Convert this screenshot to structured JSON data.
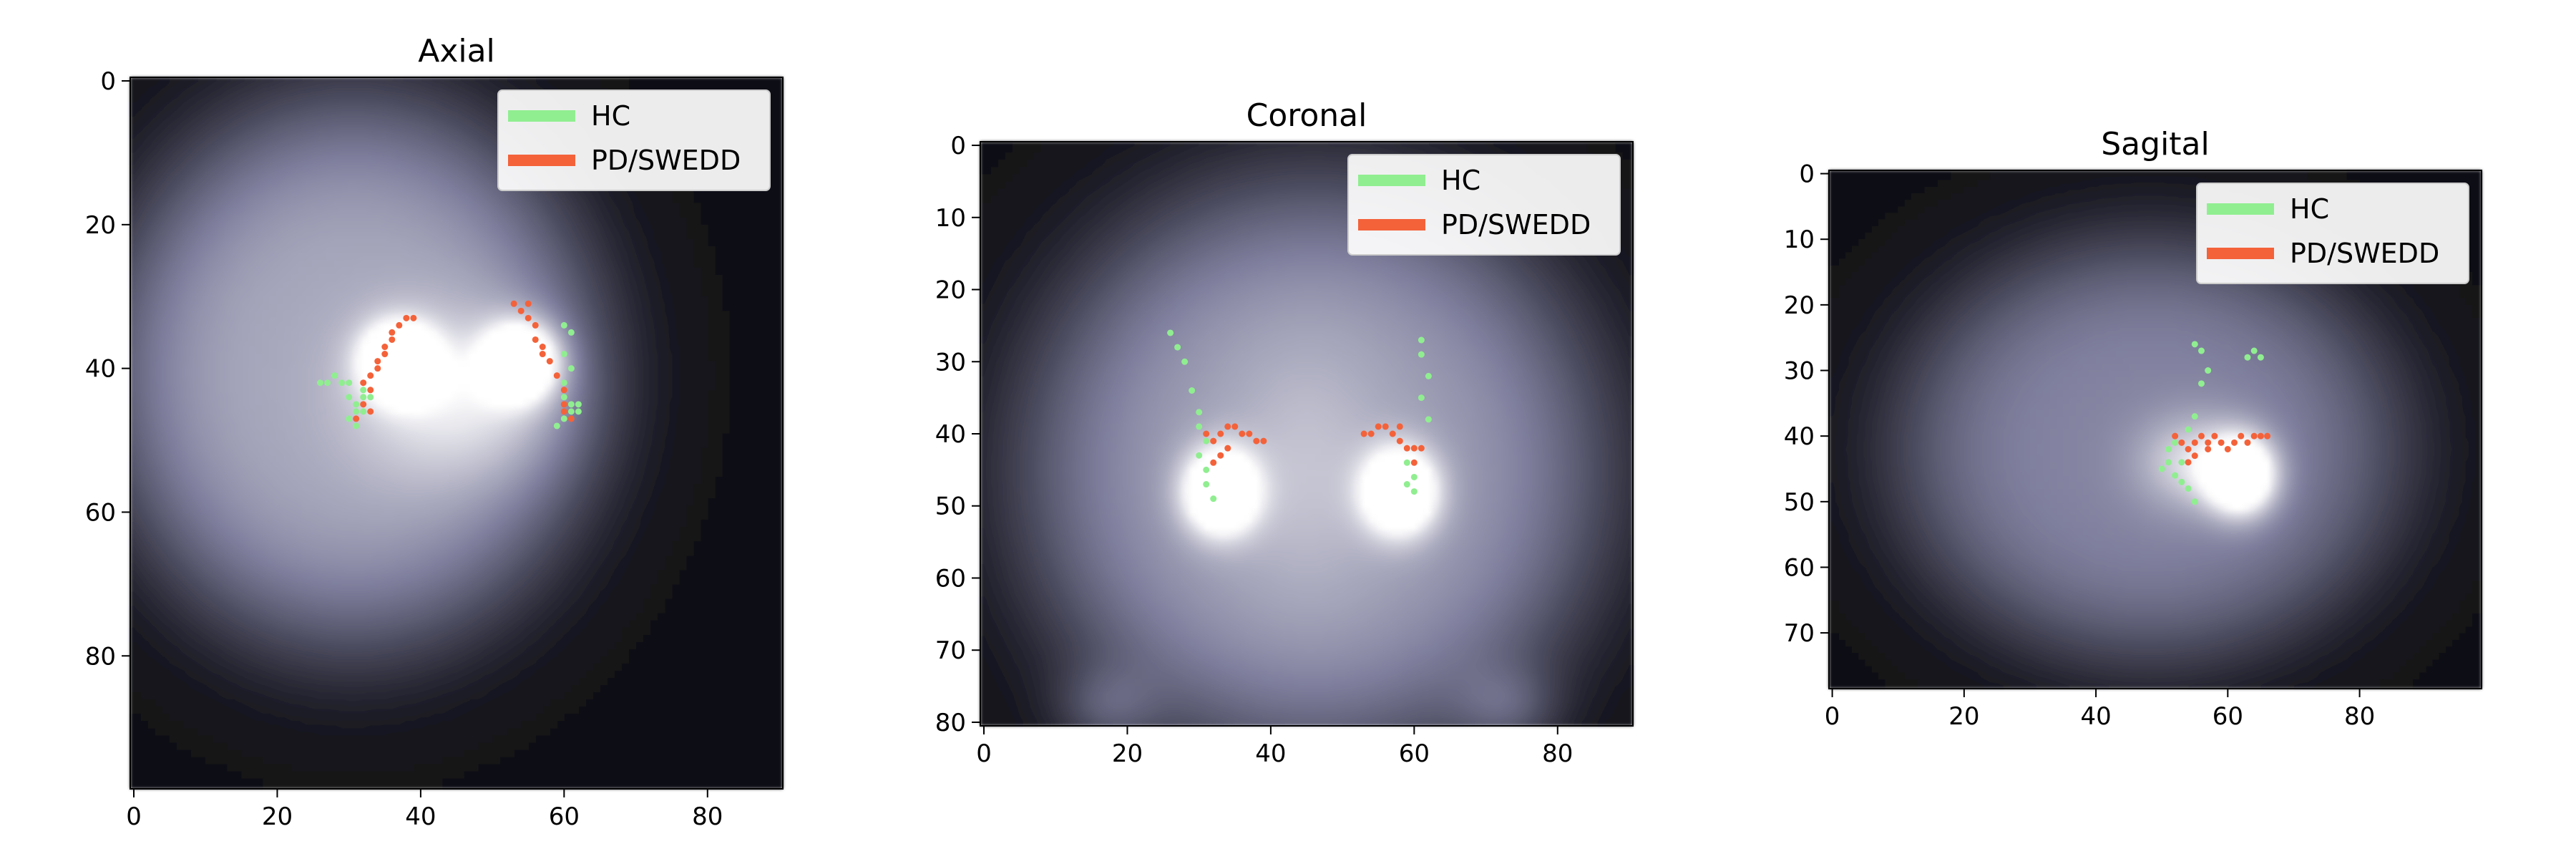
{
  "figure": {
    "type": "image-with-scatter-overlay",
    "colormap": "bone",
    "background": "#ffffff",
    "legend_position": "upper-right"
  },
  "chart_data": [
    {
      "type": "scatter",
      "title": "Axial",
      "xlim": [
        -0.5,
        90.5
      ],
      "ylim": [
        98.5,
        -0.5
      ],
      "x_ticks": [
        0,
        20,
        40,
        60,
        80
      ],
      "y_ticks": [
        0,
        20,
        40,
        60,
        80
      ],
      "image": {
        "width": 91,
        "height": 99,
        "blobs": [
          {
            "x": 30.5,
            "y": 40.5,
            "sx": 34,
            "sy": 38,
            "v": 0.62
          },
          {
            "x": 37,
            "y": 39,
            "sx": 3.5,
            "sy": 3.5,
            "v": 0.95
          },
          {
            "x": 54,
            "y": 39,
            "sx": 3.5,
            "sy": 3.5,
            "v": 0.95
          },
          {
            "x": 40,
            "y": 44,
            "sx": 8,
            "sy": 8,
            "v": 0.2
          },
          {
            "x": 52,
            "y": 44,
            "sx": 8,
            "sy": 8,
            "v": 0.2
          }
        ]
      },
      "series": [
        {
          "name": "HC",
          "color": "#90ee90",
          "points": [
            [
              26,
              42
            ],
            [
              27,
              42
            ],
            [
              28,
              41
            ],
            [
              29,
              42
            ],
            [
              30,
              44
            ],
            [
              31,
              45
            ],
            [
              32,
              44
            ],
            [
              31,
              46
            ],
            [
              30,
              47
            ],
            [
              32,
              46
            ],
            [
              31,
              48
            ],
            [
              33,
              44
            ],
            [
              30,
              42
            ],
            [
              32,
              43
            ],
            [
              60,
              34
            ],
            [
              61,
              35
            ],
            [
              60,
              38
            ],
            [
              61,
              40
            ],
            [
              60,
              44
            ],
            [
              61,
              46
            ],
            [
              62,
              45
            ],
            [
              60,
              47
            ],
            [
              59,
              48
            ],
            [
              61,
              45
            ],
            [
              62,
              46
            ],
            [
              60,
              42
            ]
          ]
        },
        {
          "name": "PD/SWEDD",
          "color": "#f4623a",
          "points": [
            [
              31,
              47
            ],
            [
              32,
              45
            ],
            [
              33,
              43
            ],
            [
              33,
              41
            ],
            [
              34,
              39
            ],
            [
              35,
              38
            ],
            [
              36,
              36
            ],
            [
              36,
              35
            ],
            [
              37,
              34
            ],
            [
              38,
              33
            ],
            [
              39,
              33
            ],
            [
              35,
              37
            ],
            [
              34,
              40
            ],
            [
              32,
              42
            ],
            [
              33,
              46
            ],
            [
              53,
              31
            ],
            [
              54,
              32
            ],
            [
              55,
              33
            ],
            [
              56,
              34
            ],
            [
              56,
              36
            ],
            [
              57,
              37
            ],
            [
              58,
              39
            ],
            [
              59,
              41
            ],
            [
              60,
              43
            ],
            [
              60,
              45
            ],
            [
              61,
              47
            ],
            [
              60,
              46
            ],
            [
              55,
              31
            ],
            [
              57,
              38
            ]
          ]
        }
      ]
    },
    {
      "type": "scatter",
      "title": "Coronal",
      "xlim": [
        -0.5,
        90.5
      ],
      "ylim": [
        80.5,
        -0.5
      ],
      "x_ticks": [
        0,
        20,
        40,
        60,
        80
      ],
      "y_ticks": [
        0,
        10,
        20,
        30,
        40,
        50,
        60,
        70,
        80
      ],
      "image": {
        "width": 91,
        "height": 81,
        "blobs": [
          {
            "x": 46,
            "y": 45,
            "sx": 40,
            "sy": 40,
            "v": 0.58
          },
          {
            "x": 33,
            "y": 48,
            "sx": 3.5,
            "sy": 4,
            "v": 0.95
          },
          {
            "x": 58,
            "y": 48,
            "sx": 3.5,
            "sy": 4,
            "v": 0.95
          },
          {
            "x": 45,
            "y": 45,
            "sx": 8,
            "sy": 12,
            "v": 0.15
          },
          {
            "x": 17,
            "y": 78,
            "sx": 5,
            "sy": 4,
            "v": 0.2
          },
          {
            "x": 73,
            "y": 78,
            "sx": 5,
            "sy": 4,
            "v": 0.2
          }
        ]
      },
      "series": [
        {
          "name": "HC",
          "color": "#90ee90",
          "points": [
            [
              26,
              26
            ],
            [
              27,
              28
            ],
            [
              28,
              30
            ],
            [
              29,
              34
            ],
            [
              30,
              37
            ],
            [
              30,
              39
            ],
            [
              31,
              41
            ],
            [
              30,
              43
            ],
            [
              31,
              45
            ],
            [
              31,
              47
            ],
            [
              32,
              49
            ],
            [
              61,
              27
            ],
            [
              61,
              29
            ],
            [
              62,
              32
            ],
            [
              61,
              35
            ],
            [
              62,
              38
            ],
            [
              60,
              42
            ],
            [
              59,
              44
            ],
            [
              60,
              46
            ],
            [
              59,
              47
            ],
            [
              60,
              48
            ]
          ]
        },
        {
          "name": "PD/SWEDD",
          "color": "#f4623a",
          "points": [
            [
              31,
              40
            ],
            [
              32,
              41
            ],
            [
              33,
              40
            ],
            [
              34,
              39
            ],
            [
              35,
              39
            ],
            [
              36,
              40
            ],
            [
              37,
              40
            ],
            [
              38,
              41
            ],
            [
              39,
              41
            ],
            [
              33,
              43
            ],
            [
              32,
              44
            ],
            [
              34,
              42
            ],
            [
              53,
              40
            ],
            [
              54,
              40
            ],
            [
              55,
              39
            ],
            [
              56,
              39
            ],
            [
              57,
              40
            ],
            [
              58,
              41
            ],
            [
              59,
              42
            ],
            [
              60,
              42
            ],
            [
              61,
              42
            ],
            [
              58,
              39
            ],
            [
              60,
              44
            ]
          ]
        }
      ]
    },
    {
      "type": "scatter",
      "title": "Sagital",
      "xlim": [
        -0.5,
        98.5
      ],
      "ylim": [
        78.5,
        -0.5
      ],
      "x_ticks": [
        0,
        20,
        40,
        60,
        80
      ],
      "y_ticks": [
        0,
        10,
        20,
        30,
        40,
        50,
        60,
        70
      ],
      "image": {
        "width": 99,
        "height": 79,
        "blobs": [
          {
            "x": 48,
            "y": 42,
            "sx": 38,
            "sy": 32,
            "v": 0.48
          },
          {
            "x": 62,
            "y": 46,
            "sx": 3.5,
            "sy": 4,
            "v": 0.95
          },
          {
            "x": 55,
            "y": 44,
            "sx": 6,
            "sy": 5,
            "v": 0.35
          }
        ]
      },
      "series": [
        {
          "name": "HC",
          "color": "#90ee90",
          "points": [
            [
              55,
              26
            ],
            [
              56,
              27
            ],
            [
              57,
              30
            ],
            [
              56,
              32
            ],
            [
              64,
              27
            ],
            [
              65,
              28
            ],
            [
              63,
              28
            ],
            [
              55,
              37
            ],
            [
              54,
              39
            ],
            [
              52,
              41
            ],
            [
              51,
              44
            ],
            [
              50,
              45
            ],
            [
              52,
              46
            ],
            [
              53,
              47
            ],
            [
              54,
              48
            ],
            [
              55,
              50
            ],
            [
              53,
              44
            ],
            [
              51,
              42
            ]
          ]
        },
        {
          "name": "PD/SWEDD",
          "color": "#f4623a",
          "points": [
            [
              52,
              40
            ],
            [
              53,
              41
            ],
            [
              54,
              42
            ],
            [
              55,
              41
            ],
            [
              56,
              40
            ],
            [
              57,
              41
            ],
            [
              58,
              40
            ],
            [
              59,
              41
            ],
            [
              60,
              42
            ],
            [
              61,
              41
            ],
            [
              62,
              40
            ],
            [
              63,
              41
            ],
            [
              64,
              40
            ],
            [
              65,
              40
            ],
            [
              66,
              40
            ],
            [
              55,
              43
            ],
            [
              54,
              44
            ],
            [
              57,
              42
            ]
          ]
        }
      ]
    }
  ]
}
